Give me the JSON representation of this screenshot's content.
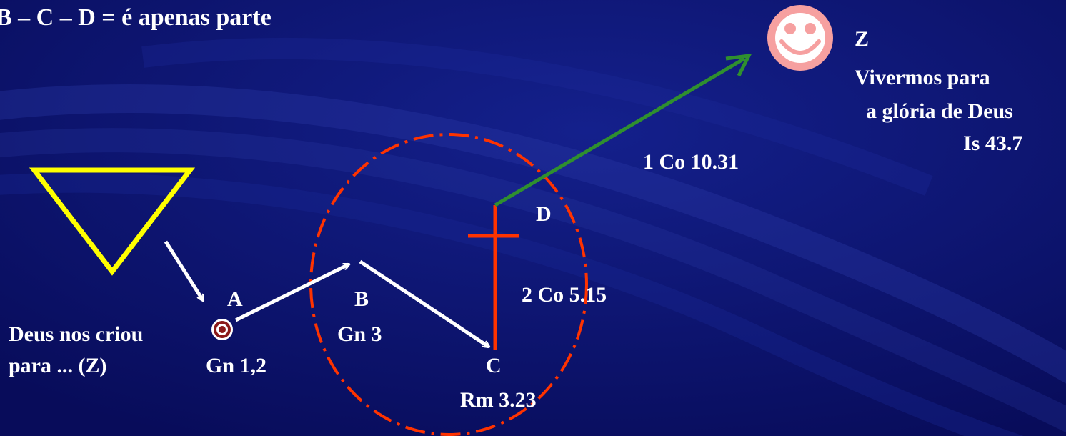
{
  "title": "B – C – D = é apenas parte",
  "labels": {
    "a": "A",
    "b": "B",
    "c": "C",
    "d": "D",
    "z": "Z",
    "deus_criou_1": "Deus nos criou",
    "deus_criou_2": "para ... (Z)",
    "gn12": "Gn 1,2",
    "gn3": "Gn 3",
    "rm323": "Rm 3.23",
    "co515": "2 Co 5.15",
    "co1031": "1 Co 10.31",
    "viver_1": "Vivermos para",
    "viver_2": "a glória de Deus",
    "is437": "Is 43.7"
  },
  "colors": {
    "background": "#0a0f6e",
    "triangle": "#ffff00",
    "arrows": "#ffffff",
    "cross": "#ff3300",
    "dashed_circle": "#ff3300",
    "green_arrow": "#2f8f2f",
    "smiley": "#f6a0a0",
    "target": "#8b1a1a"
  },
  "icons": {
    "smiley": "smiley-face-icon",
    "target": "target-icon",
    "cross": "cross-icon"
  }
}
